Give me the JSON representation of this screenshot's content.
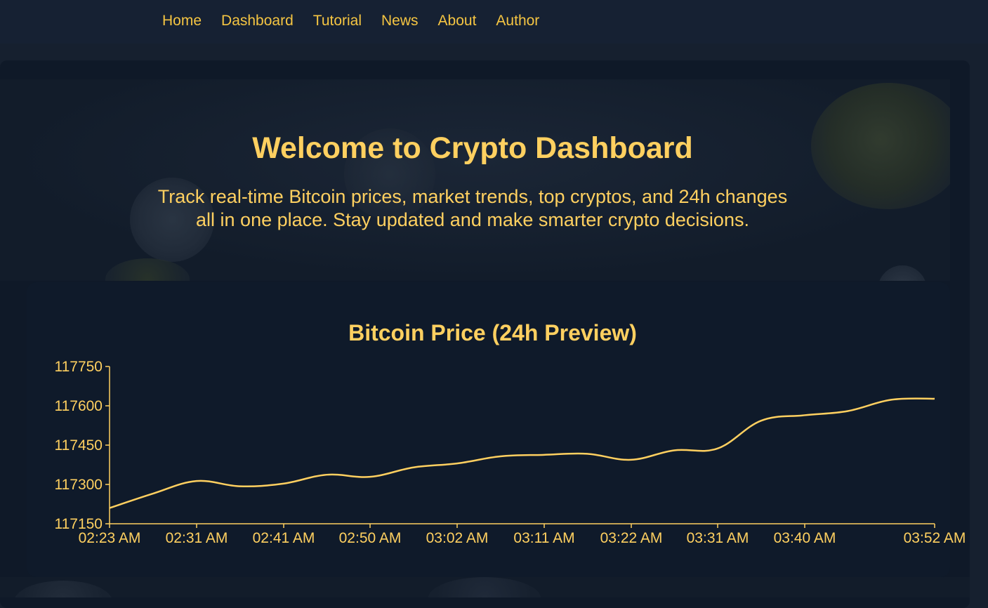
{
  "nav": {
    "items": [
      {
        "label": "Home"
      },
      {
        "label": "Dashboard"
      },
      {
        "label": "Tutorial"
      },
      {
        "label": "News"
      },
      {
        "label": "About"
      },
      {
        "label": "Author"
      }
    ]
  },
  "hero": {
    "title": "Welcome to Crypto Dashboard",
    "subtitle_line1": "Track real-time Bitcoin prices, market trends, top cryptos, and 24h changes",
    "subtitle_line2": "all in one place. Stay updated and make smarter crypto decisions."
  },
  "colors": {
    "accent": "#ffd060",
    "background": "#0f1a2a",
    "nav_background": "#162133"
  },
  "chart_data": {
    "type": "line",
    "title": "Bitcoin Price (24h Preview)",
    "xlabel": "",
    "ylabel": "",
    "ylim": [
      117150,
      117750
    ],
    "yticks": [
      117150,
      117300,
      117450,
      117600,
      117750
    ],
    "xticks": [
      "02:23 AM",
      "02:31 AM",
      "02:41 AM",
      "02:50 AM",
      "03:02 AM",
      "03:11 AM",
      "03:22 AM",
      "03:31 AM",
      "03:40 AM",
      "03:52 AM"
    ],
    "grid": false,
    "series": [
      {
        "values": [
          117210,
          117265,
          117313,
          117293,
          117303,
          117337,
          117329,
          117365,
          117380,
          117407,
          117413,
          117417,
          117394,
          117430,
          117437,
          117543,
          117564,
          117580,
          117623,
          117627
        ]
      }
    ]
  }
}
